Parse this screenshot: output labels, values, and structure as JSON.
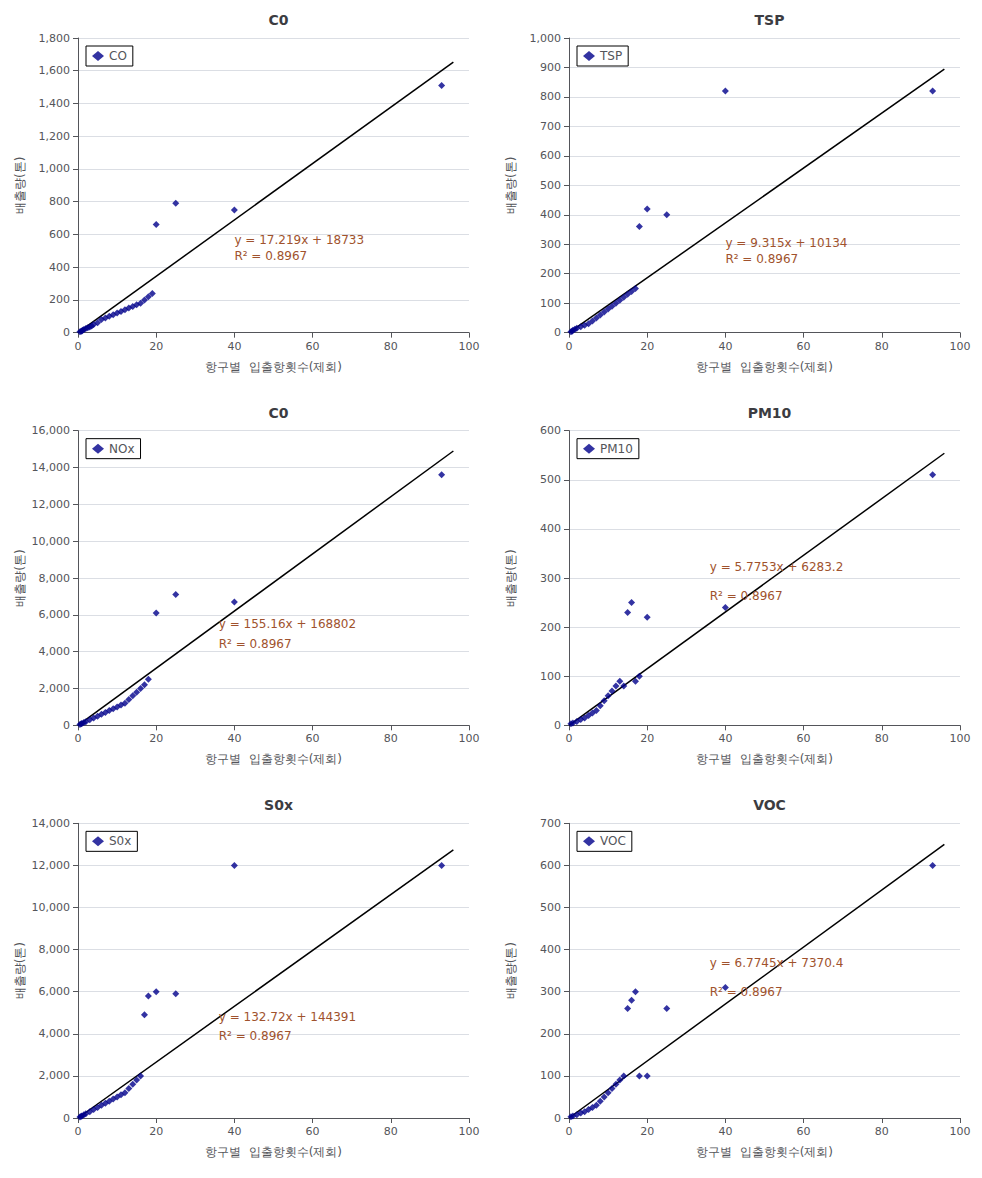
{
  "chart_data": [
    {
      "type": "scatter",
      "title": "C0",
      "xlabel": "항구별  입출항횟수(제회)",
      "ylabel": "배출량(톤)",
      "series": [
        {
          "name": "CO",
          "type": "scatter",
          "color": "#00008B",
          "marker": "diamond",
          "x": [
            0.5,
            0.8,
            1,
            1.2,
            1.5,
            2,
            2.5,
            3,
            3.5,
            4,
            5,
            6,
            7,
            8,
            9,
            10,
            11,
            12,
            13,
            14,
            15,
            16,
            17,
            18,
            19,
            20,
            25,
            40,
            93
          ],
          "values": [
            5,
            8,
            10,
            15,
            20,
            25,
            30,
            35,
            40,
            50,
            60,
            80,
            90,
            100,
            110,
            120,
            130,
            140,
            150,
            160,
            170,
            180,
            200,
            220,
            240,
            660,
            790,
            750,
            1510
          ]
        },
        {
          "type": "line",
          "color": "#000000",
          "x": [
            0,
            96
          ],
          "values": [
            0,
            1653
          ]
        }
      ],
      "annotations": [
        {
          "text": "y = 17.219x + 18733",
          "x": 40,
          "y": 530,
          "color": "#A0522D"
        },
        {
          "text": "R² = 0.8967",
          "x": 40,
          "y": 430,
          "color": "#A0522D"
        }
      ],
      "xlim": [
        0,
        100
      ],
      "ylim": [
        0,
        1800
      ],
      "xticks": [
        0,
        20,
        40,
        60,
        80,
        100
      ],
      "yticks": [
        0,
        200,
        400,
        600,
        800,
        {
          "value": 1000,
          "label": "1,000"
        },
        {
          "value": 1200,
          "label": "1,200"
        },
        {
          "value": 1400,
          "label": "1,400"
        },
        {
          "value": 1600,
          "label": "1,600"
        },
        {
          "value": 1800,
          "label": "1,800"
        }
      ],
      "grid": "y",
      "legend": "upper left"
    },
    {
      "type": "scatter",
      "title": "TSP",
      "xlabel": "항구별  입출항횟수(제회)",
      "ylabel": "배출량(톤)",
      "series": [
        {
          "name": "TSP",
          "type": "scatter",
          "color": "#00008B",
          "marker": "diamond",
          "x": [
            0.5,
            0.8,
            1,
            1.5,
            2,
            3,
            4,
            5,
            6,
            7,
            8,
            9,
            10,
            11,
            12,
            13,
            14,
            15,
            16,
            17,
            18,
            20,
            25,
            40,
            93
          ],
          "values": [
            3,
            5,
            8,
            12,
            15,
            20,
            25,
            30,
            40,
            50,
            60,
            70,
            80,
            90,
            100,
            110,
            120,
            130,
            140,
            150,
            360,
            420,
            400,
            820,
            820
          ]
        },
        {
          "type": "line",
          "color": "#000000",
          "x": [
            0,
            96
          ],
          "values": [
            0,
            894
          ]
        }
      ],
      "annotations": [
        {
          "text": "y = 9.315x + 10134",
          "x": 40,
          "y": 285,
          "color": "#A0522D"
        },
        {
          "text": "R² = 0.8967",
          "x": 40,
          "y": 230,
          "color": "#A0522D"
        }
      ],
      "xlim": [
        0,
        100
      ],
      "ylim": [
        0,
        1000
      ],
      "xticks": [
        0,
        20,
        40,
        60,
        80,
        100
      ],
      "yticks": [
        0,
        100,
        200,
        300,
        400,
        500,
        600,
        700,
        800,
        900,
        {
          "value": 1000,
          "label": "1,000"
        }
      ],
      "grid": "y",
      "legend": "upper left"
    },
    {
      "type": "scatter",
      "title": "C0",
      "xlabel": "항구별  입출항횟수(제회)",
      "ylabel": "배출량(톤)",
      "series": [
        {
          "name": "NOx",
          "type": "scatter",
          "color": "#00008B",
          "marker": "diamond",
          "x": [
            0.5,
            0.8,
            1,
            1.5,
            2,
            3,
            4,
            5,
            6,
            7,
            8,
            9,
            10,
            11,
            12,
            13,
            14,
            15,
            16,
            17,
            18,
            20,
            25,
            40,
            93
          ],
          "values": [
            50,
            80,
            100,
            150,
            200,
            300,
            400,
            500,
            600,
            700,
            800,
            900,
            1000,
            1100,
            1200,
            1400,
            1600,
            1800,
            2000,
            2200,
            2500,
            6100,
            7100,
            6700,
            13600
          ]
        },
        {
          "type": "line",
          "color": "#000000",
          "x": [
            0,
            96
          ],
          "values": [
            0,
            14895
          ]
        }
      ],
      "annotations": [
        {
          "text": "y = 155.16x + 168802",
          "x": 36,
          "y": 5200,
          "color": "#A0522D"
        },
        {
          "text": "R² = 0.8967",
          "x": 36,
          "y": 4100,
          "color": "#A0522D"
        }
      ],
      "xlim": [
        0,
        100
      ],
      "ylim": [
        0,
        16000
      ],
      "xticks": [
        0,
        20,
        40,
        60,
        80,
        100
      ],
      "yticks": [
        0,
        {
          "value": 2000,
          "label": "2,000"
        },
        {
          "value": 4000,
          "label": "4,000"
        },
        {
          "value": 6000,
          "label": "6,000"
        },
        {
          "value": 8000,
          "label": "8,000"
        },
        {
          "value": 10000,
          "label": "10,000"
        },
        {
          "value": 12000,
          "label": "12,000"
        },
        {
          "value": 14000,
          "label": "14,000"
        },
        {
          "value": 16000,
          "label": "16,000"
        }
      ],
      "grid": "y",
      "legend": "upper left"
    },
    {
      "type": "scatter",
      "title": "PM10",
      "xlabel": "항구별  입출항횟수(제회)",
      "ylabel": "배출량(톤)",
      "series": [
        {
          "name": "PM10",
          "type": "scatter",
          "color": "#00008B",
          "marker": "diamond",
          "x": [
            0.5,
            1,
            2,
            3,
            4,
            5,
            6,
            7,
            8,
            9,
            10,
            11,
            12,
            13,
            14,
            15,
            16,
            17,
            18,
            20,
            40,
            93
          ],
          "values": [
            3,
            5,
            8,
            12,
            15,
            20,
            25,
            30,
            40,
            50,
            60,
            70,
            80,
            90,
            80,
            230,
            250,
            90,
            100,
            220,
            240,
            510
          ]
        },
        {
          "type": "line",
          "color": "#000000",
          "x": [
            0,
            96
          ],
          "values": [
            0,
            554
          ]
        }
      ],
      "annotations": [
        {
          "text": "y = 5.7753x + 6283.2",
          "x": 36,
          "y": 310,
          "color": "#A0522D"
        },
        {
          "text": "R² = 0.8967",
          "x": 36,
          "y": 252,
          "color": "#A0522D"
        }
      ],
      "xlim": [
        0,
        100
      ],
      "ylim": [
        0,
        600
      ],
      "xticks": [
        0,
        20,
        40,
        60,
        80,
        100
      ],
      "yticks": [
        0,
        100,
        200,
        300,
        400,
        500,
        600
      ],
      "grid": "y",
      "legend": "upper left"
    },
    {
      "type": "scatter",
      "title": "S0x",
      "xlabel": "항구별  입출항횟수(제회)",
      "ylabel": "배출량(톤)",
      "series": [
        {
          "name": "S0x",
          "type": "scatter",
          "color": "#00008B",
          "marker": "diamond",
          "x": [
            0.5,
            0.8,
            1,
            1.5,
            2,
            3,
            4,
            5,
            6,
            7,
            8,
            9,
            10,
            11,
            12,
            13,
            14,
            15,
            16,
            17,
            18,
            20,
            25,
            40,
            93
          ],
          "values": [
            50,
            80,
            100,
            150,
            200,
            300,
            400,
            500,
            600,
            700,
            800,
            900,
            1000,
            1100,
            1200,
            1400,
            1600,
            1800,
            2000,
            4900,
            5800,
            6000,
            5900,
            12000,
            12000
          ]
        },
        {
          "type": "line",
          "color": "#000000",
          "x": [
            0,
            96
          ],
          "values": [
            0,
            12741
          ]
        }
      ],
      "annotations": [
        {
          "text": "y = 132.72x + 144391",
          "x": 36,
          "y": 4500,
          "color": "#A0522D"
        },
        {
          "text": "R² = 0.8967",
          "x": 36,
          "y": 3600,
          "color": "#A0522D"
        }
      ],
      "xlim": [
        0,
        100
      ],
      "ylim": [
        0,
        14000
      ],
      "xticks": [
        0,
        20,
        40,
        60,
        80,
        100
      ],
      "yticks": [
        0,
        {
          "value": 2000,
          "label": "2,000"
        },
        {
          "value": 4000,
          "label": "4,000"
        },
        {
          "value": 6000,
          "label": "6,000"
        },
        {
          "value": 8000,
          "label": "8,000"
        },
        {
          "value": 10000,
          "label": "10,000"
        },
        {
          "value": 12000,
          "label": "12,000"
        },
        {
          "value": 14000,
          "label": "14,000"
        }
      ],
      "grid": "y",
      "legend": "upper left"
    },
    {
      "type": "scatter",
      "title": "VOC",
      "xlabel": "항구별  입출항횟수(제회)",
      "ylabel": "배출량(톤)",
      "series": [
        {
          "name": "VOC",
          "type": "scatter",
          "color": "#00008B",
          "marker": "diamond",
          "x": [
            0.5,
            1,
            2,
            3,
            4,
            5,
            6,
            7,
            8,
            9,
            10,
            11,
            12,
            13,
            14,
            15,
            16,
            17,
            18,
            20,
            25,
            40,
            93
          ],
          "values": [
            3,
            5,
            8,
            12,
            15,
            20,
            25,
            30,
            40,
            50,
            60,
            70,
            80,
            90,
            100,
            260,
            280,
            300,
            100,
            100,
            260,
            310,
            600
          ]
        },
        {
          "type": "line",
          "color": "#000000",
          "x": [
            0,
            96
          ],
          "values": [
            0,
            650
          ]
        }
      ],
      "annotations": [
        {
          "text": "y = 6.7745x + 7370.4",
          "x": 36,
          "y": 355,
          "color": "#A0522D"
        },
        {
          "text": "R² = 0.8967",
          "x": 36,
          "y": 285,
          "color": "#A0522D"
        }
      ],
      "xlim": [
        0,
        100
      ],
      "ylim": [
        0,
        700
      ],
      "xticks": [
        0,
        20,
        40,
        60,
        80,
        100
      ],
      "yticks": [
        0,
        100,
        200,
        300,
        400,
        500,
        600,
        700
      ],
      "grid": "y",
      "legend": "upper left"
    }
  ]
}
